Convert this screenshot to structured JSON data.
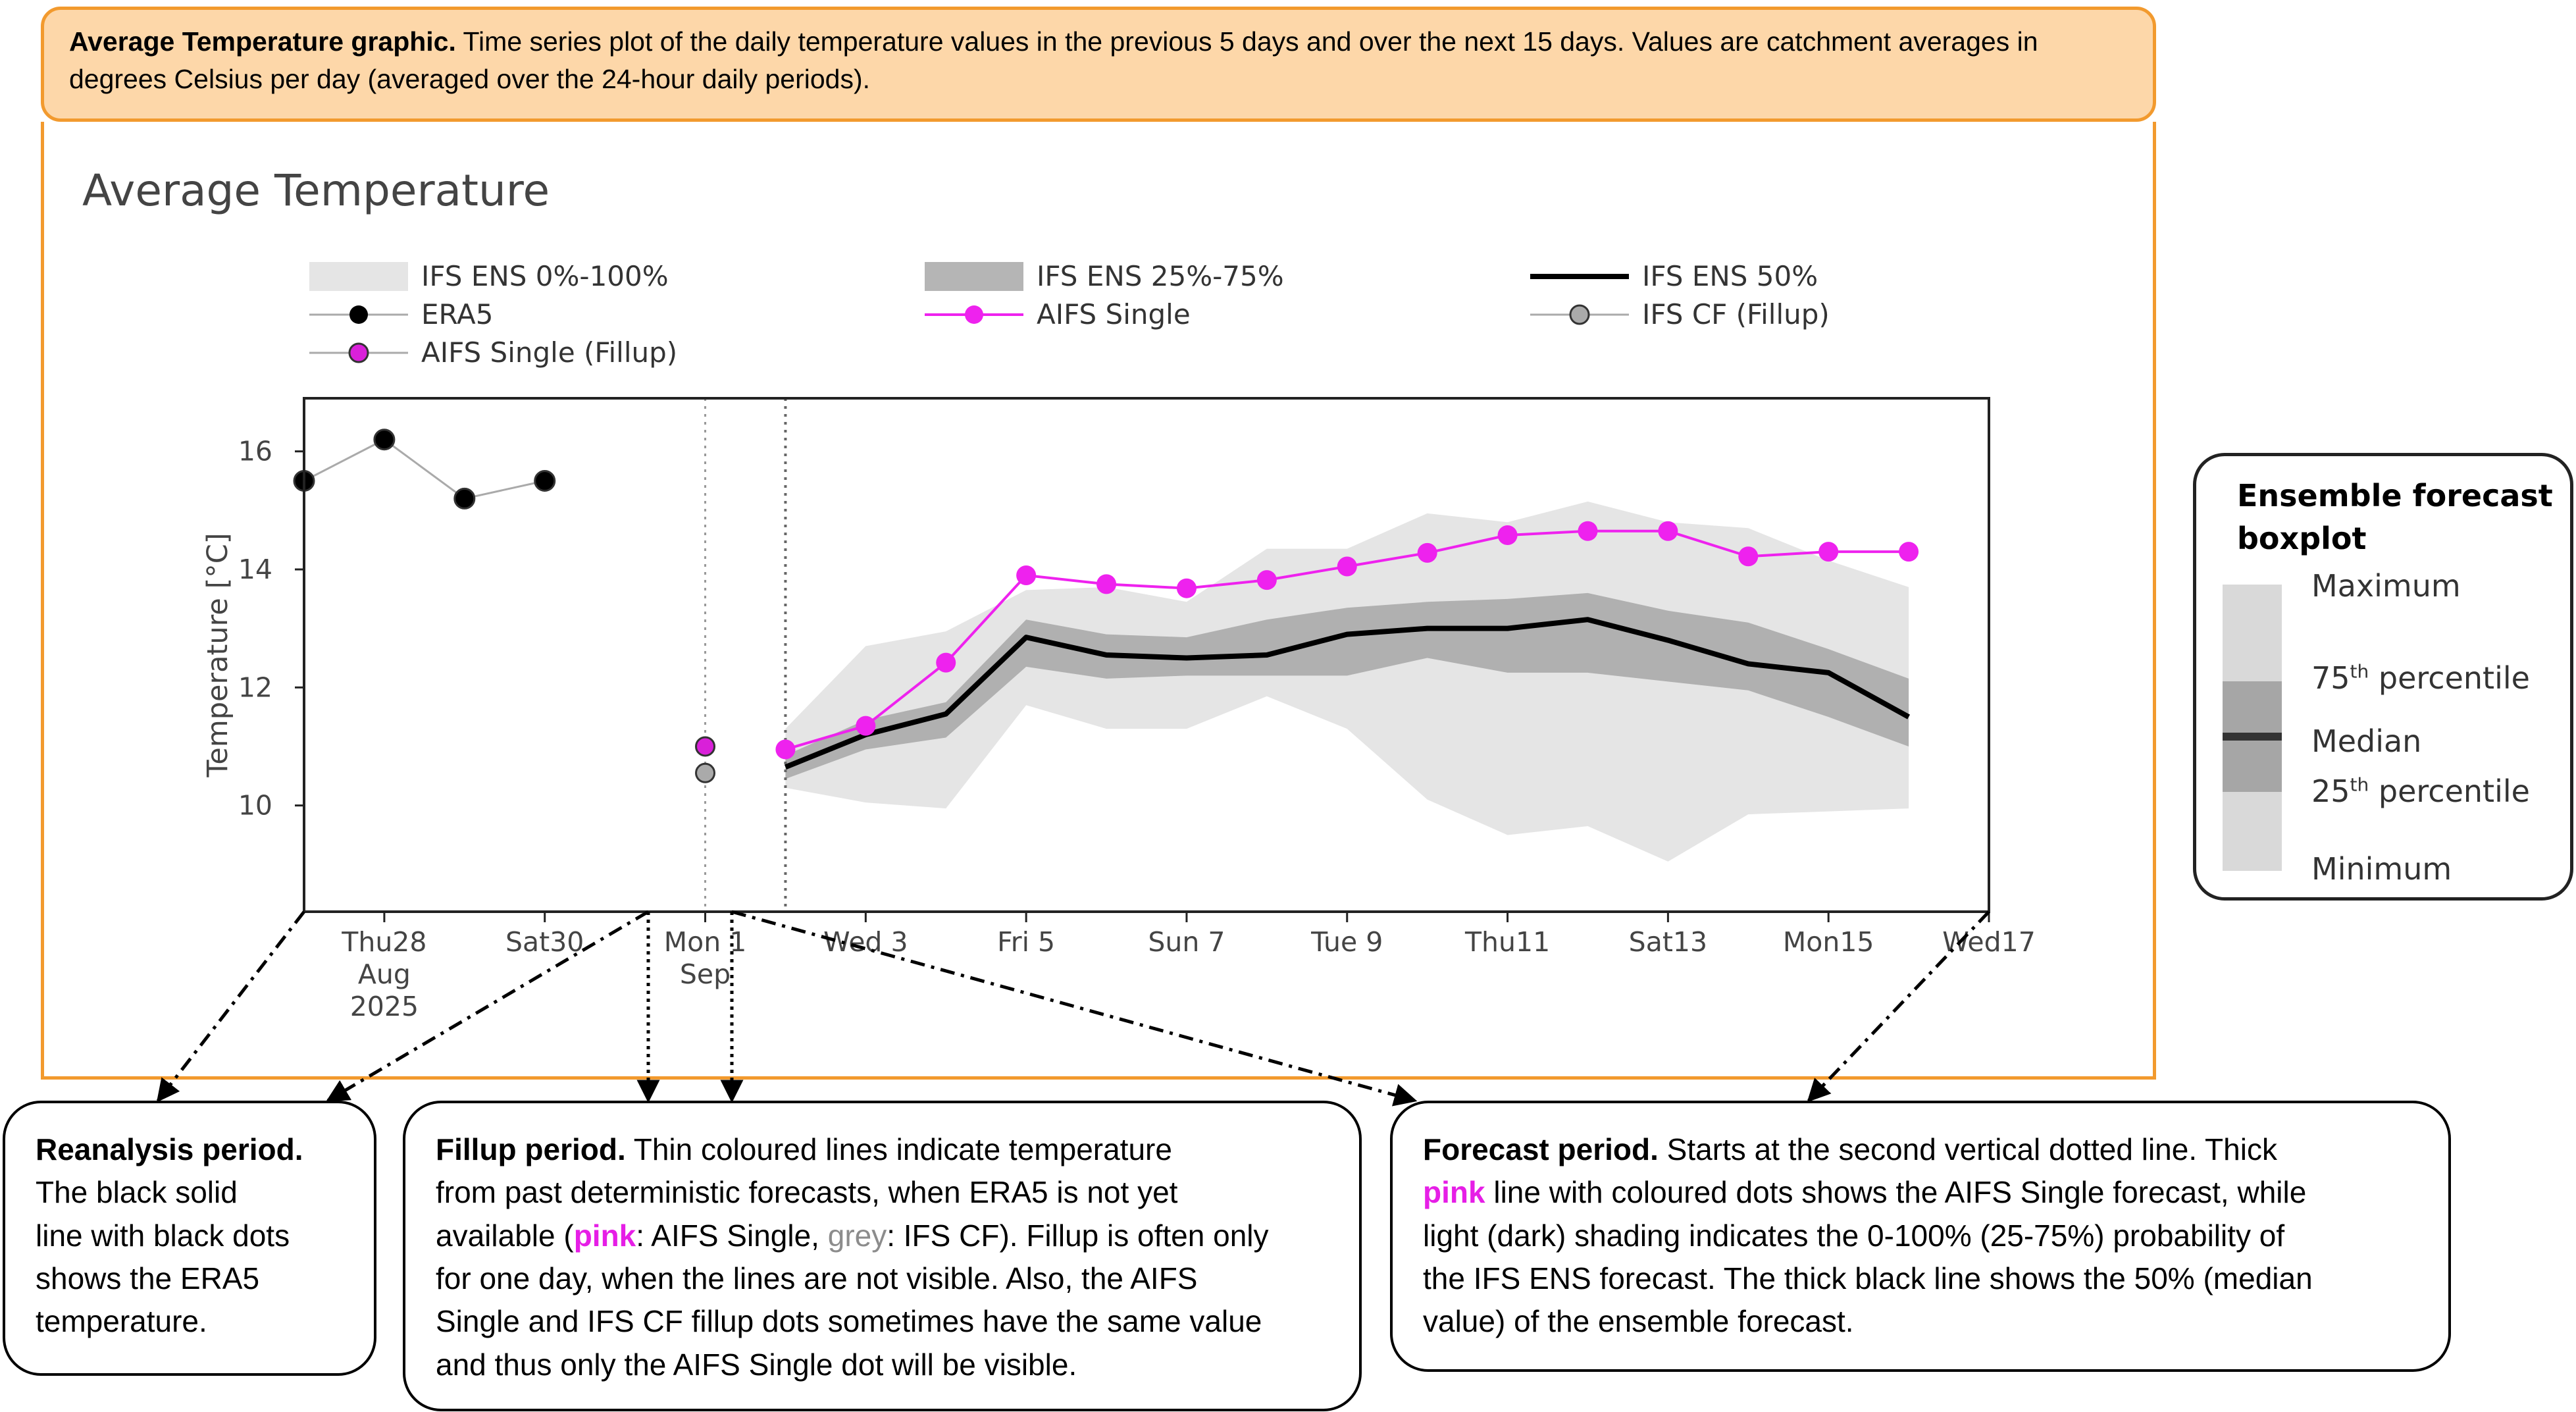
{
  "caption": {
    "title": "Average Temperature graphic.",
    "body": "Time series plot of the daily temperature values in the previous 5 days and over the next 15 days. Values are catchment averages in degrees Celsius per day (averaged over the 24-hour daily periods)."
  },
  "chart_data": {
    "type": "line",
    "title": "Average Temperature",
    "ylabel": "Temperature [°C]",
    "xlabel": "",
    "ylim": [
      8.2,
      16.9
    ],
    "yticks": [
      10,
      12,
      14,
      16
    ],
    "x_range": [
      "2025-08-27",
      "2025-09-17"
    ],
    "x_ticks": [
      {
        "date": "2025-08-28",
        "lines": [
          "Thu28",
          "Aug",
          "2025"
        ]
      },
      {
        "date": "2025-08-30",
        "lines": [
          "Sat30"
        ]
      },
      {
        "date": "2025-09-01",
        "lines": [
          "Mon 1",
          "Sep"
        ]
      },
      {
        "date": "2025-09-03",
        "lines": [
          "Wed 3"
        ]
      },
      {
        "date": "2025-09-05",
        "lines": [
          "Fri 5"
        ]
      },
      {
        "date": "2025-09-07",
        "lines": [
          "Sun 7"
        ]
      },
      {
        "date": "2025-09-09",
        "lines": [
          "Tue 9"
        ]
      },
      {
        "date": "2025-09-11",
        "lines": [
          "Thu11"
        ]
      },
      {
        "date": "2025-09-13",
        "lines": [
          "Sat13"
        ]
      },
      {
        "date": "2025-09-15",
        "lines": [
          "Mon15"
        ]
      },
      {
        "date": "2025-09-17",
        "lines": [
          "Wed17"
        ]
      }
    ],
    "vertical_lines": [
      "2025-09-01",
      "2025-09-02"
    ],
    "grid": false,
    "legend_position": "top",
    "series": [
      {
        "name": "ERA5",
        "color": "#000000",
        "line_color": "#aaaaaa",
        "x": [
          "2025-08-27",
          "2025-08-28",
          "2025-08-29",
          "2025-08-30",
          "2025-08-31"
        ],
        "values": [
          15.5,
          16.2,
          15.2,
          15.5,
          null
        ]
      },
      {
        "name": "AIFS Single (Fillup)",
        "color": "#d920d9",
        "x": [
          "2025-09-01"
        ],
        "values": [
          11.0
        ]
      },
      {
        "name": "IFS CF (Fillup)",
        "color": "#aaaaaa",
        "x": [
          "2025-09-01"
        ],
        "values": [
          10.55
        ]
      },
      {
        "name": "AIFS Single",
        "color": "#ee22ee",
        "x": [
          "2025-09-02",
          "2025-09-03",
          "2025-09-04",
          "2025-09-05",
          "2025-09-06",
          "2025-09-07",
          "2025-09-08",
          "2025-09-09",
          "2025-09-10",
          "2025-09-11",
          "2025-09-12",
          "2025-09-13",
          "2025-09-14",
          "2025-09-15",
          "2025-09-16",
          "2025-09-17"
        ],
        "values": [
          10.95,
          11.35,
          12.42,
          13.9,
          13.75,
          13.68,
          13.82,
          14.05,
          14.28,
          14.58,
          14.65,
          14.65,
          14.22,
          14.3,
          14.3,
          null
        ]
      },
      {
        "name": "IFS ENS 50%",
        "color": "#000000",
        "x": [
          "2025-09-02",
          "2025-09-03",
          "2025-09-04",
          "2025-09-05",
          "2025-09-06",
          "2025-09-07",
          "2025-09-08",
          "2025-09-09",
          "2025-09-10",
          "2025-09-11",
          "2025-09-12",
          "2025-09-13",
          "2025-09-14",
          "2025-09-15",
          "2025-09-16",
          "2025-09-17"
        ],
        "values": [
          10.65,
          11.2,
          11.55,
          12.85,
          12.55,
          12.5,
          12.55,
          12.9,
          13.0,
          13.0,
          13.15,
          12.8,
          12.4,
          12.25,
          11.5,
          null
        ]
      },
      {
        "name": "IFS ENS 25%-75%",
        "color": "#b0b0b0",
        "x": [
          "2025-09-02",
          "2025-09-03",
          "2025-09-04",
          "2025-09-05",
          "2025-09-06",
          "2025-09-07",
          "2025-09-08",
          "2025-09-09",
          "2025-09-10",
          "2025-09-11",
          "2025-09-12",
          "2025-09-13",
          "2025-09-14",
          "2025-09-15",
          "2025-09-16",
          "2025-09-17"
        ],
        "low": [
          10.45,
          10.95,
          11.15,
          12.35,
          12.15,
          12.2,
          12.2,
          12.2,
          12.5,
          12.25,
          12.25,
          12.1,
          11.95,
          11.5,
          11.0,
          null
        ],
        "high": [
          10.85,
          11.45,
          11.75,
          13.15,
          12.9,
          12.85,
          13.15,
          13.35,
          13.45,
          13.5,
          13.6,
          13.3,
          13.1,
          12.65,
          12.15,
          null
        ]
      },
      {
        "name": "IFS ENS 0%-100%",
        "color": "#e5e5e5",
        "x": [
          "2025-09-02",
          "2025-09-03",
          "2025-09-04",
          "2025-09-05",
          "2025-09-06",
          "2025-09-07",
          "2025-09-08",
          "2025-09-09",
          "2025-09-10",
          "2025-09-11",
          "2025-09-12",
          "2025-09-13",
          "2025-09-14",
          "2025-09-15",
          "2025-09-16",
          "2025-09-17"
        ],
        "low": [
          10.3,
          10.05,
          9.95,
          11.7,
          11.3,
          11.3,
          11.85,
          11.3,
          10.1,
          9.5,
          9.65,
          9.05,
          9.85,
          9.9,
          9.95,
          null
        ],
        "high": [
          11.3,
          12.7,
          12.95,
          13.65,
          13.7,
          13.45,
          14.35,
          14.35,
          14.95,
          14.8,
          15.15,
          14.8,
          14.7,
          14.15,
          13.7,
          null
        ]
      }
    ],
    "legend": [
      {
        "label": "IFS ENS 0%-100%",
        "kind": "band-light"
      },
      {
        "label": "IFS ENS 25%-75%",
        "kind": "band-dark"
      },
      {
        "label": "IFS ENS 50%",
        "kind": "line-black"
      },
      {
        "label": "ERA5",
        "kind": "dot-black"
      },
      {
        "label": "AIFS Single",
        "kind": "dot-pink-line"
      },
      {
        "label": "IFS CF (Fillup)",
        "kind": "dot-grey"
      },
      {
        "label": "AIFS Single (Fillup)",
        "kind": "dot-pink"
      }
    ]
  },
  "callouts": {
    "reanalysis": {
      "title": "Reanalysis period.",
      "line1": "The black solid",
      "line2": "line with black dots",
      "line3": "shows the ERA5",
      "line4": "temperature."
    },
    "fillup": {
      "title": "Fillup period.",
      "t1": "Thin coloured lines indicate temperature",
      "t2": "from past deterministic forecasts, when ERA5 is not yet",
      "t3a": "available (",
      "pink": "pink",
      "t3b": ": AIFS Single, ",
      "grey": "grey",
      "t3c": ": IFS CF). Fillup is often only",
      "t4": "for one day, when the lines are not visible. Also, the AIFS",
      "t5": "Single and IFS CF fillup dots sometimes have the same value",
      "t6": "and thus only the AIFS Single dot will be visible."
    },
    "forecast": {
      "title": "Forecast period.",
      "t1": "Starts at the second vertical dotted line. Thick",
      "pink": "pink",
      "t2": "line with coloured dots shows the AIFS Single forecast, while",
      "t3": "light (dark) shading indicates the 0-100% (25-75%) probability of",
      "t4": "the IFS ENS forecast. The thick black line shows the 50% (median",
      "t5": "value) of the ensemble forecast."
    }
  },
  "boxplot_legend": {
    "title1": "Ensemble forecast",
    "title2": "boxplot",
    "maximum": "Maximum",
    "p75": "75",
    "p75_suffix": "th",
    "p75_rest": " percentile",
    "median": "Median",
    "p25": "25",
    "p25_suffix": "th",
    "p25_rest": " percentile",
    "minimum": "Minimum",
    "colors": {
      "outer": "#d9d9d9",
      "inner": "#a6a6a6",
      "median": "#333333"
    }
  }
}
